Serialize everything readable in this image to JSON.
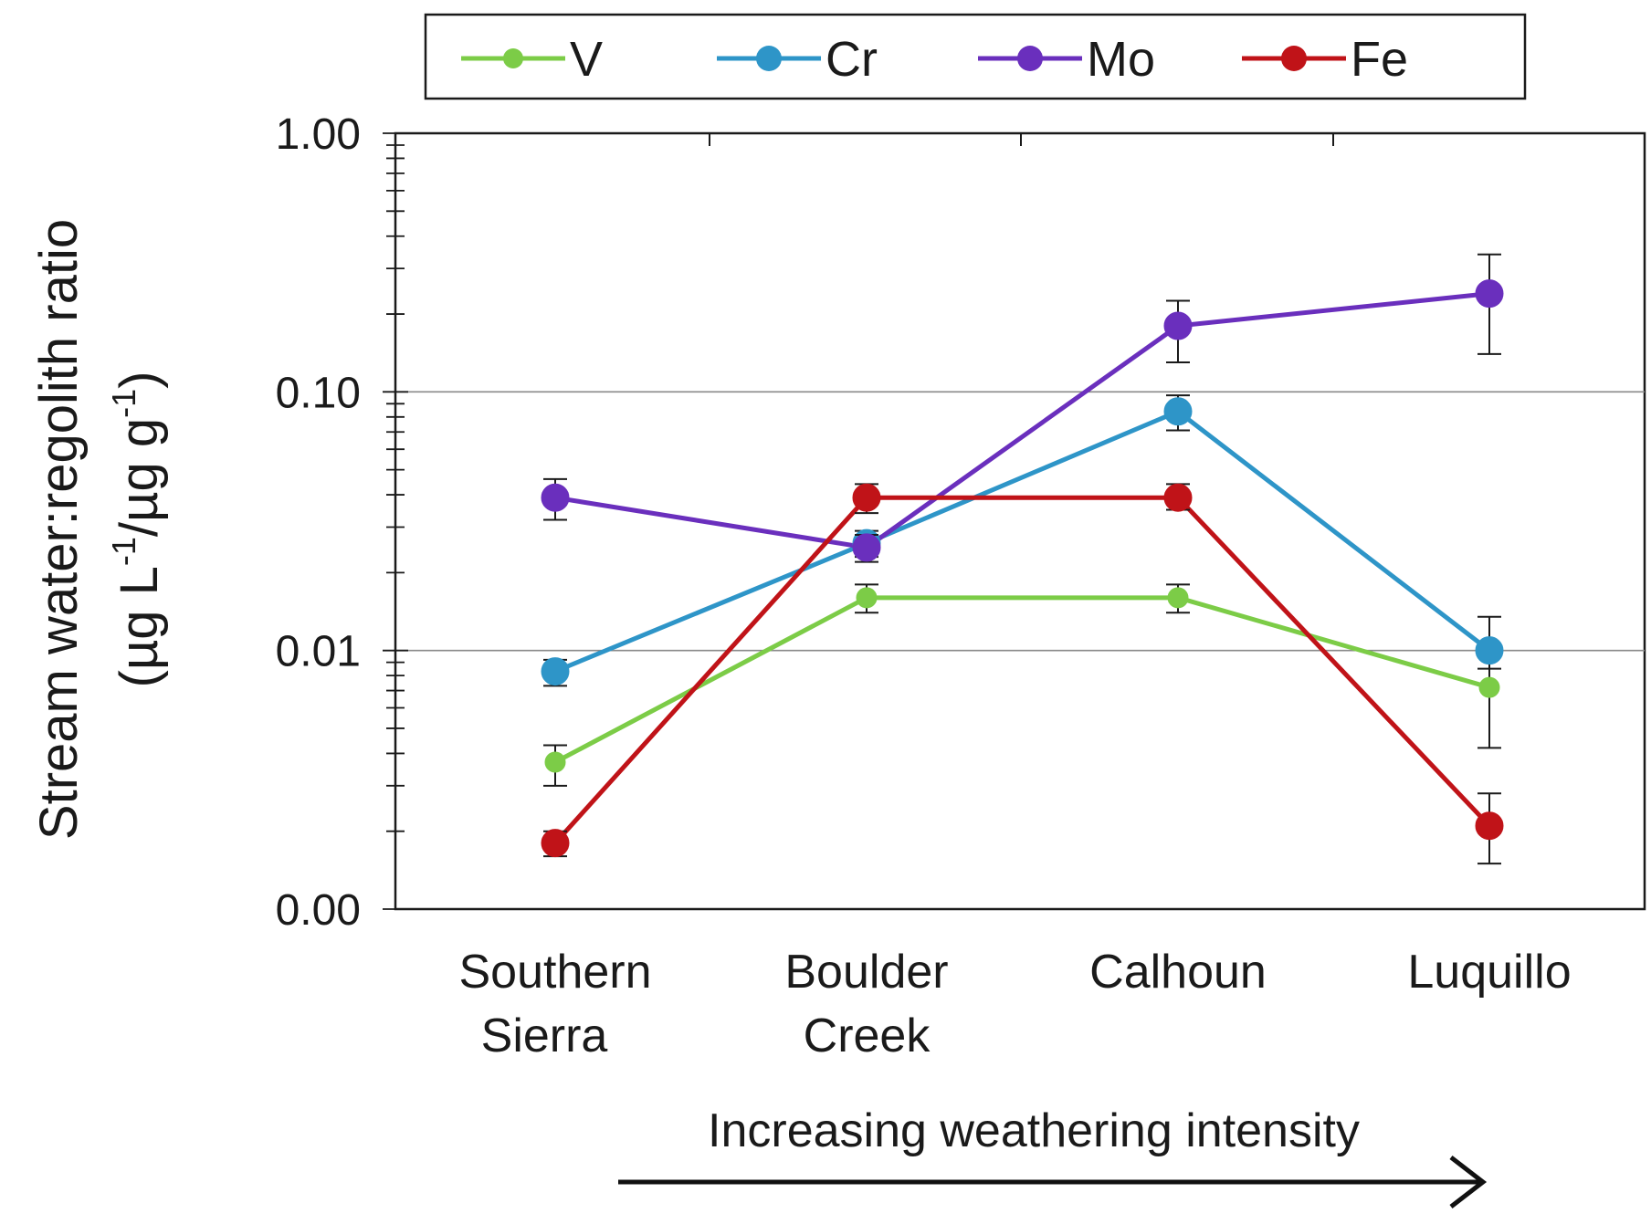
{
  "chart_data": {
    "type": "line",
    "yscale": "log",
    "ylim": [
      0.001,
      1.0
    ],
    "ylabel_line1": "Stream water:regolith ratio",
    "ylabel_line2": "(µg L",
    "ylabel_sup1": "-1",
    "ylabel_mid": "/µg g",
    "ylabel_sup2": "-1",
    "ylabel_end": ")",
    "yticks": [
      {
        "value": 1.0,
        "label": "1.00"
      },
      {
        "value": 0.1,
        "label": "0.10"
      },
      {
        "value": 0.01,
        "label": "0.01"
      },
      {
        "value": 0.001,
        "label": "0.00"
      }
    ],
    "gridlines_at": [
      0.1,
      0.01
    ],
    "categories": [
      [
        "Southern",
        "Sierra"
      ],
      [
        "Boulder",
        "Creek"
      ],
      [
        "Calhoun"
      ],
      [
        "Luquillo"
      ]
    ],
    "annotation": "Increasing weathering intensity",
    "legend_position": "top",
    "series": [
      {
        "name": "V",
        "color": "#7ccc47",
        "values": [
          0.0037,
          0.016,
          0.016,
          0.0072
        ],
        "err_low": [
          0.003,
          0.014,
          0.014,
          0.0042
        ],
        "err_high": [
          0.0043,
          0.018,
          0.018,
          0.0105
        ]
      },
      {
        "name": "Cr",
        "color": "#2e95c8",
        "values": [
          0.0083,
          0.026,
          0.084,
          0.01
        ],
        "err_low": [
          0.0073,
          0.023,
          0.071,
          0.0085
        ],
        "err_high": [
          0.0092,
          0.029,
          0.097,
          0.0135
        ]
      },
      {
        "name": "Mo",
        "color": "#6a2fbd",
        "values": [
          0.039,
          0.025,
          0.18,
          0.24
        ],
        "err_low": [
          0.032,
          0.022,
          0.13,
          0.14
        ],
        "err_high": [
          0.046,
          0.028,
          0.225,
          0.34
        ]
      },
      {
        "name": "Fe",
        "color": "#c01318",
        "values": [
          0.0018,
          0.039,
          0.039,
          0.0021
        ],
        "err_low": [
          0.0016,
          0.034,
          0.035,
          0.0015
        ],
        "err_high": [
          0.002,
          0.044,
          0.044,
          0.0028
        ]
      }
    ]
  }
}
